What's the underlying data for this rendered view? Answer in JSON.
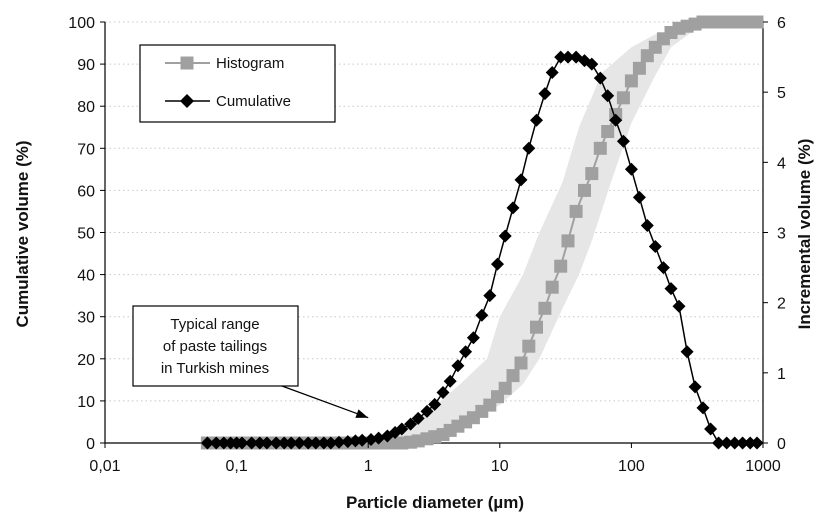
{
  "chart_data": {
    "type": "line",
    "xlabel": "Particle diameter (µm)",
    "ylabel_left": "Cumulative volume (%)",
    "ylabel_right": "Incremental volume (%)",
    "x_scale": "log",
    "xlim": [
      0.01,
      1000
    ],
    "ylim_left": [
      0,
      100
    ],
    "ylim_right": [
      0,
      6
    ],
    "x_ticks": [
      "0,01",
      "0,1",
      "1",
      "10",
      "100",
      "1000"
    ],
    "y_left_ticks": [
      "0",
      "10",
      "20",
      "30",
      "40",
      "50",
      "60",
      "70",
      "80",
      "90",
      "100"
    ],
    "y_right_ticks": [
      "0",
      "1",
      "2",
      "3",
      "4",
      "5",
      "6"
    ],
    "grid": "horizontal dotted",
    "legend": {
      "placement": "top-left",
      "entries": [
        {
          "label": "Histogram",
          "marker": "square",
          "color": "#a0a0a0"
        },
        {
          "label": "Cumulative",
          "marker": "diamond",
          "color": "#000000"
        }
      ]
    },
    "annotation": {
      "lines": [
        "Typical range",
        "of paste tailings",
        "in Turkish mines"
      ],
      "points_to_x": 1.0,
      "points_to_y_left": 6
    },
    "band": {
      "name": "Typical range of paste tailings in Turkish mines",
      "color": "#e6e6e6",
      "lower": [
        [
          1,
          0
        ],
        [
          2,
          1
        ],
        [
          5,
          4
        ],
        [
          10,
          9
        ],
        [
          15,
          14
        ],
        [
          20,
          20
        ],
        [
          30,
          32
        ],
        [
          40,
          40
        ],
        [
          50,
          48
        ],
        [
          70,
          62
        ],
        [
          100,
          76
        ],
        [
          150,
          87
        ],
        [
          200,
          94
        ],
        [
          300,
          98
        ],
        [
          400,
          99
        ],
        [
          1000,
          99
        ]
      ],
      "upper": [
        [
          1,
          0
        ],
        [
          1.8,
          3
        ],
        [
          3,
          8
        ],
        [
          5,
          14
        ],
        [
          8,
          20
        ],
        [
          10,
          30
        ],
        [
          15,
          40
        ],
        [
          20,
          50
        ],
        [
          30,
          62
        ],
        [
          40,
          75
        ],
        [
          60,
          88
        ],
        [
          100,
          94
        ],
        [
          150,
          97
        ],
        [
          300,
          99
        ],
        [
          1000,
          99
        ]
      ]
    },
    "series": [
      {
        "name": "Histogram",
        "axis": "left",
        "color": "#a0a0a0",
        "marker": "square",
        "points": [
          [
            0.06,
            0
          ],
          [
            0.07,
            0
          ],
          [
            0.08,
            0
          ],
          [
            0.09,
            0
          ],
          [
            0.1,
            0
          ],
          [
            0.11,
            0
          ],
          [
            0.13,
            0
          ],
          [
            0.15,
            0
          ],
          [
            0.17,
            0
          ],
          [
            0.2,
            0
          ],
          [
            0.23,
            0
          ],
          [
            0.26,
            0
          ],
          [
            0.3,
            0
          ],
          [
            0.35,
            0
          ],
          [
            0.4,
            0
          ],
          [
            0.46,
            0
          ],
          [
            0.52,
            0
          ],
          [
            0.6,
            0
          ],
          [
            0.7,
            0
          ],
          [
            0.8,
            0
          ],
          [
            0.9,
            0
          ],
          [
            1.05,
            0
          ],
          [
            1.2,
            0
          ],
          [
            1.4,
            0
          ],
          [
            1.6,
            0
          ],
          [
            1.8,
            0
          ],
          [
            2.1,
            0.2
          ],
          [
            2.4,
            0.5
          ],
          [
            2.8,
            1
          ],
          [
            3.2,
            1.5
          ],
          [
            3.7,
            2
          ],
          [
            4.2,
            3
          ],
          [
            4.8,
            4
          ],
          [
            5.5,
            5
          ],
          [
            6.3,
            6
          ],
          [
            7.3,
            7.5
          ],
          [
            8.4,
            9
          ],
          [
            9.6,
            11
          ],
          [
            11,
            13
          ],
          [
            12.6,
            16
          ],
          [
            14.5,
            19
          ],
          [
            16.6,
            23
          ],
          [
            19,
            27.5
          ],
          [
            22,
            32
          ],
          [
            25,
            37
          ],
          [
            29,
            42
          ],
          [
            33,
            48
          ],
          [
            38,
            55
          ],
          [
            44,
            60
          ],
          [
            50,
            64
          ],
          [
            58,
            70
          ],
          [
            66,
            74
          ],
          [
            76,
            78
          ],
          [
            87,
            82
          ],
          [
            100,
            86
          ],
          [
            115,
            89
          ],
          [
            132,
            92
          ],
          [
            152,
            94
          ],
          [
            175,
            96
          ],
          [
            200,
            97.5
          ],
          [
            230,
            98.5
          ],
          [
            265,
            99
          ],
          [
            305,
            99.5
          ],
          [
            350,
            100
          ],
          [
            400,
            100
          ],
          [
            460,
            100
          ],
          [
            530,
            100
          ],
          [
            610,
            100
          ],
          [
            700,
            100
          ],
          [
            800,
            100
          ],
          [
            900,
            100
          ]
        ]
      },
      {
        "name": "Cumulative",
        "axis": "right",
        "color": "#000000",
        "marker": "diamond",
        "points": [
          [
            0.06,
            0
          ],
          [
            0.07,
            0
          ],
          [
            0.08,
            0
          ],
          [
            0.09,
            0
          ],
          [
            0.1,
            0
          ],
          [
            0.11,
            0
          ],
          [
            0.13,
            0
          ],
          [
            0.15,
            0
          ],
          [
            0.17,
            0
          ],
          [
            0.2,
            0
          ],
          [
            0.23,
            0
          ],
          [
            0.26,
            0
          ],
          [
            0.3,
            0
          ],
          [
            0.35,
            0
          ],
          [
            0.4,
            0
          ],
          [
            0.46,
            0
          ],
          [
            0.52,
            0
          ],
          [
            0.6,
            0.01
          ],
          [
            0.7,
            0.02
          ],
          [
            0.8,
            0.03
          ],
          [
            0.9,
            0.04
          ],
          [
            1.05,
            0.05
          ],
          [
            1.2,
            0.07
          ],
          [
            1.4,
            0.1
          ],
          [
            1.6,
            0.15
          ],
          [
            1.8,
            0.2
          ],
          [
            2.1,
            0.27
          ],
          [
            2.4,
            0.35
          ],
          [
            2.8,
            0.45
          ],
          [
            3.2,
            0.55
          ],
          [
            3.7,
            0.72
          ],
          [
            4.2,
            0.88
          ],
          [
            4.8,
            1.1
          ],
          [
            5.5,
            1.3
          ],
          [
            6.3,
            1.5
          ],
          [
            7.3,
            1.82
          ],
          [
            8.4,
            2.1
          ],
          [
            9.6,
            2.55
          ],
          [
            11,
            2.95
          ],
          [
            12.6,
            3.35
          ],
          [
            14.5,
            3.75
          ],
          [
            16.6,
            4.2
          ],
          [
            19,
            4.6
          ],
          [
            22,
            4.98
          ],
          [
            25,
            5.28
          ],
          [
            29,
            5.5
          ],
          [
            33,
            5.5
          ],
          [
            38,
            5.5
          ],
          [
            44,
            5.45
          ],
          [
            50,
            5.4
          ],
          [
            58,
            5.2
          ],
          [
            66,
            4.95
          ],
          [
            76,
            4.6
          ],
          [
            87,
            4.3
          ],
          [
            100,
            3.9
          ],
          [
            115,
            3.5
          ],
          [
            132,
            3.1
          ],
          [
            152,
            2.8
          ],
          [
            175,
            2.5
          ],
          [
            200,
            2.2
          ],
          [
            230,
            1.95
          ],
          [
            265,
            1.3
          ],
          [
            305,
            0.8
          ],
          [
            350,
            0.5
          ],
          [
            400,
            0.2
          ],
          [
            460,
            0
          ],
          [
            530,
            0
          ],
          [
            610,
            0
          ],
          [
            700,
            0
          ],
          [
            800,
            0
          ],
          [
            900,
            0
          ]
        ]
      }
    ]
  }
}
